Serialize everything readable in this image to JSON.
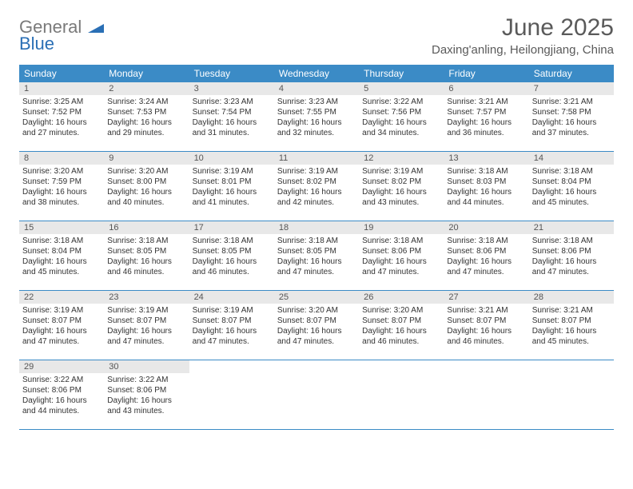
{
  "brand": {
    "part1": "General",
    "part2": "Blue"
  },
  "title": "June 2025",
  "subtitle": "Daxing'anling, Heilongjiang, China",
  "colors": {
    "header_bg": "#3b8bc6",
    "header_text": "#ffffff",
    "daynum_bg": "#e8e8e8",
    "divider": "#3b8bc6",
    "logo_gray": "#7a7a7a",
    "logo_blue": "#2a6fb5",
    "title_color": "#5a5a5a",
    "body_text": "#333333"
  },
  "weekdays": [
    "Sunday",
    "Monday",
    "Tuesday",
    "Wednesday",
    "Thursday",
    "Friday",
    "Saturday"
  ],
  "weeks": [
    [
      {
        "n": "1",
        "sr": "3:25 AM",
        "ss": "7:52 PM",
        "dh": "16",
        "dm": "27"
      },
      {
        "n": "2",
        "sr": "3:24 AM",
        "ss": "7:53 PM",
        "dh": "16",
        "dm": "29"
      },
      {
        "n": "3",
        "sr": "3:23 AM",
        "ss": "7:54 PM",
        "dh": "16",
        "dm": "31"
      },
      {
        "n": "4",
        "sr": "3:23 AM",
        "ss": "7:55 PM",
        "dh": "16",
        "dm": "32"
      },
      {
        "n": "5",
        "sr": "3:22 AM",
        "ss": "7:56 PM",
        "dh": "16",
        "dm": "34"
      },
      {
        "n": "6",
        "sr": "3:21 AM",
        "ss": "7:57 PM",
        "dh": "16",
        "dm": "36"
      },
      {
        "n": "7",
        "sr": "3:21 AM",
        "ss": "7:58 PM",
        "dh": "16",
        "dm": "37"
      }
    ],
    [
      {
        "n": "8",
        "sr": "3:20 AM",
        "ss": "7:59 PM",
        "dh": "16",
        "dm": "38"
      },
      {
        "n": "9",
        "sr": "3:20 AM",
        "ss": "8:00 PM",
        "dh": "16",
        "dm": "40"
      },
      {
        "n": "10",
        "sr": "3:19 AM",
        "ss": "8:01 PM",
        "dh": "16",
        "dm": "41"
      },
      {
        "n": "11",
        "sr": "3:19 AM",
        "ss": "8:02 PM",
        "dh": "16",
        "dm": "42"
      },
      {
        "n": "12",
        "sr": "3:19 AM",
        "ss": "8:02 PM",
        "dh": "16",
        "dm": "43"
      },
      {
        "n": "13",
        "sr": "3:18 AM",
        "ss": "8:03 PM",
        "dh": "16",
        "dm": "44"
      },
      {
        "n": "14",
        "sr": "3:18 AM",
        "ss": "8:04 PM",
        "dh": "16",
        "dm": "45"
      }
    ],
    [
      {
        "n": "15",
        "sr": "3:18 AM",
        "ss": "8:04 PM",
        "dh": "16",
        "dm": "45"
      },
      {
        "n": "16",
        "sr": "3:18 AM",
        "ss": "8:05 PM",
        "dh": "16",
        "dm": "46"
      },
      {
        "n": "17",
        "sr": "3:18 AM",
        "ss": "8:05 PM",
        "dh": "16",
        "dm": "46"
      },
      {
        "n": "18",
        "sr": "3:18 AM",
        "ss": "8:05 PM",
        "dh": "16",
        "dm": "47"
      },
      {
        "n": "19",
        "sr": "3:18 AM",
        "ss": "8:06 PM",
        "dh": "16",
        "dm": "47"
      },
      {
        "n": "20",
        "sr": "3:18 AM",
        "ss": "8:06 PM",
        "dh": "16",
        "dm": "47"
      },
      {
        "n": "21",
        "sr": "3:18 AM",
        "ss": "8:06 PM",
        "dh": "16",
        "dm": "47"
      }
    ],
    [
      {
        "n": "22",
        "sr": "3:19 AM",
        "ss": "8:07 PM",
        "dh": "16",
        "dm": "47"
      },
      {
        "n": "23",
        "sr": "3:19 AM",
        "ss": "8:07 PM",
        "dh": "16",
        "dm": "47"
      },
      {
        "n": "24",
        "sr": "3:19 AM",
        "ss": "8:07 PM",
        "dh": "16",
        "dm": "47"
      },
      {
        "n": "25",
        "sr": "3:20 AM",
        "ss": "8:07 PM",
        "dh": "16",
        "dm": "47"
      },
      {
        "n": "26",
        "sr": "3:20 AM",
        "ss": "8:07 PM",
        "dh": "16",
        "dm": "46"
      },
      {
        "n": "27",
        "sr": "3:21 AM",
        "ss": "8:07 PM",
        "dh": "16",
        "dm": "46"
      },
      {
        "n": "28",
        "sr": "3:21 AM",
        "ss": "8:07 PM",
        "dh": "16",
        "dm": "45"
      }
    ],
    [
      {
        "n": "29",
        "sr": "3:22 AM",
        "ss": "8:06 PM",
        "dh": "16",
        "dm": "44"
      },
      {
        "n": "30",
        "sr": "3:22 AM",
        "ss": "8:06 PM",
        "dh": "16",
        "dm": "43"
      },
      null,
      null,
      null,
      null,
      null
    ]
  ],
  "labels": {
    "sunrise": "Sunrise:",
    "sunset": "Sunset:",
    "daylight": "Daylight:",
    "hours": "hours",
    "and": "and",
    "minutes": "minutes."
  }
}
